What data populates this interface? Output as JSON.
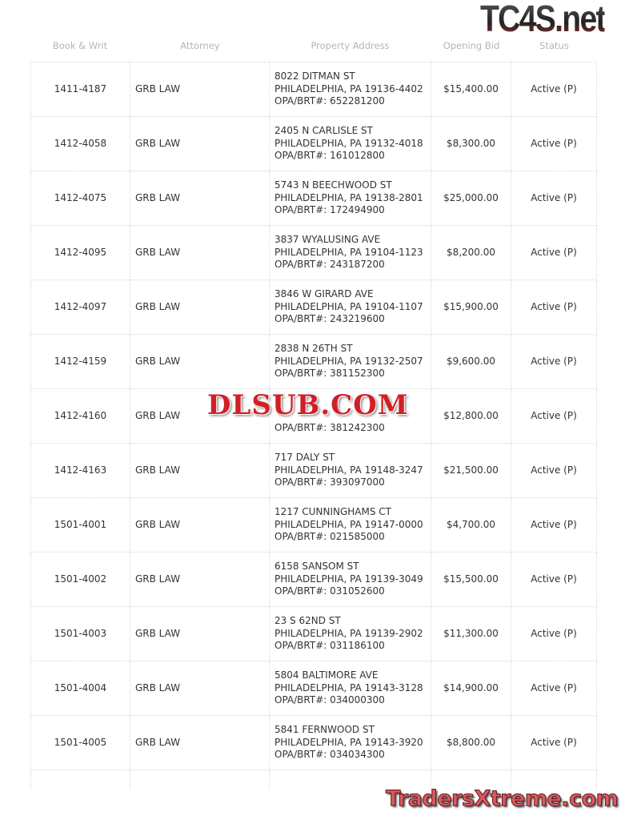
{
  "headers": {
    "book_writ": "Book & Writ",
    "attorney": "Attorney",
    "address": "Property Address",
    "bid": "Opening Bid",
    "status": "Status"
  },
  "rows": [
    {
      "book": "1411-4187",
      "attorney": "GRB LAW",
      "street": "8022 DITMAN ST",
      "city": "PHILADELPHIA, PA 19136-4402",
      "opa": "OPA/BRT#: 652281200",
      "bid": "$15,400.00",
      "status": "Active (P)"
    },
    {
      "book": "1412-4058",
      "attorney": "GRB LAW",
      "street": "2405 N CARLISLE ST",
      "city": "PHILADELPHIA, PA 19132-4018",
      "opa": "OPA/BRT#: 161012800",
      "bid": "$8,300.00",
      "status": "Active (P)"
    },
    {
      "book": "1412-4075",
      "attorney": "GRB LAW",
      "street": "5743 N BEECHWOOD ST",
      "city": "PHILADELPHIA, PA 19138-2801",
      "opa": "OPA/BRT#: 172494900",
      "bid": "$25,000.00",
      "status": "Active (P)"
    },
    {
      "book": "1412-4095",
      "attorney": "GRB LAW",
      "street": "3837 WYALUSING AVE",
      "city": "PHILADELPHIA, PA 19104-1123",
      "opa": "OPA/BRT#: 243187200",
      "bid": "$8,200.00",
      "status": "Active (P)"
    },
    {
      "book": "1412-4097",
      "attorney": "GRB LAW",
      "street": "3846 W GIRARD AVE",
      "city": "PHILADELPHIA, PA 19104-1107",
      "opa": "OPA/BRT#: 243219600",
      "bid": "$15,900.00",
      "status": "Active (P)"
    },
    {
      "book": "1412-4159",
      "attorney": "GRB LAW",
      "street": "2838 N 26TH ST",
      "city": "PHILADELPHIA, PA 19132-2507",
      "opa": "OPA/BRT#: 381152300",
      "bid": "$9,600.00",
      "status": "Active (P)"
    },
    {
      "book": "1412-4160",
      "attorney": "GRB LAW",
      "street": "",
      "city": "",
      "opa": "OPA/BRT#: 381242300",
      "bid": "$12,800.00",
      "status": "Active (P)"
    },
    {
      "book": "1412-4163",
      "attorney": "GRB LAW",
      "street": "717 DALY ST",
      "city": "PHILADELPHIA, PA 19148-3247",
      "opa": "OPA/BRT#: 393097000",
      "bid": "$21,500.00",
      "status": "Active (P)"
    },
    {
      "book": "1501-4001",
      "attorney": "GRB LAW",
      "street": "1217 CUNNINGHAMS CT",
      "city": "PHILADELPHIA, PA 19147-0000",
      "opa": "OPA/BRT#: 021585000",
      "bid": "$4,700.00",
      "status": "Active (P)"
    },
    {
      "book": "1501-4002",
      "attorney": "GRB LAW",
      "street": "6158 SANSOM ST",
      "city": "PHILADELPHIA, PA 19139-3049",
      "opa": "OPA/BRT#: 031052600",
      "bid": "$15,500.00",
      "status": "Active (P)"
    },
    {
      "book": "1501-4003",
      "attorney": "GRB LAW",
      "street": "23 S 62ND ST",
      "city": "PHILADELPHIA, PA 19139-2902",
      "opa": "OPA/BRT#: 031186100",
      "bid": "$11,300.00",
      "status": "Active (P)"
    },
    {
      "book": "1501-4004",
      "attorney": "GRB LAW",
      "street": "5804 BALTIMORE AVE",
      "city": "PHILADELPHIA, PA 19143-3128",
      "opa": "OPA/BRT#: 034000300",
      "bid": "$14,900.00",
      "status": "Active (P)"
    },
    {
      "book": "1501-4005",
      "attorney": "GRB LAW",
      "street": "5841 FERNWOOD ST",
      "city": "PHILADELPHIA, PA 19143-3920",
      "opa": "OPA/BRT#: 034034300",
      "bid": "$8,800.00",
      "status": "Active (P)"
    }
  ],
  "watermarks": {
    "top": "TC4S.net",
    "middle": "DLSUB.COM",
    "bottom": "TradersXtreme.com"
  }
}
